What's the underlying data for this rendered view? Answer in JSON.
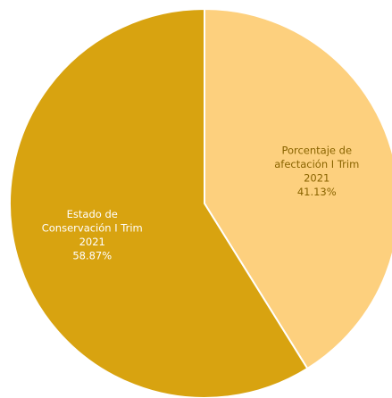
{
  "chart_data": {
    "type": "pie",
    "slices": [
      {
        "label_lines": [
          "Porcentaje de",
          "afectación I Trim",
          "2021"
        ],
        "value_label": "41.13%",
        "value": 41.13,
        "color": "#fdd07e",
        "text_color": "#8a6400"
      },
      {
        "label_lines": [
          "Estado de",
          "Conservación I Trim",
          "2021"
        ],
        "value_label": "58.87%",
        "value": 58.87,
        "color": "#d8a310",
        "text_color": "#ffffff"
      }
    ],
    "start_angle_deg": 0,
    "direction": "clockwise",
    "slice_border_color": "#ffffff",
    "title": "",
    "legend": "none"
  }
}
